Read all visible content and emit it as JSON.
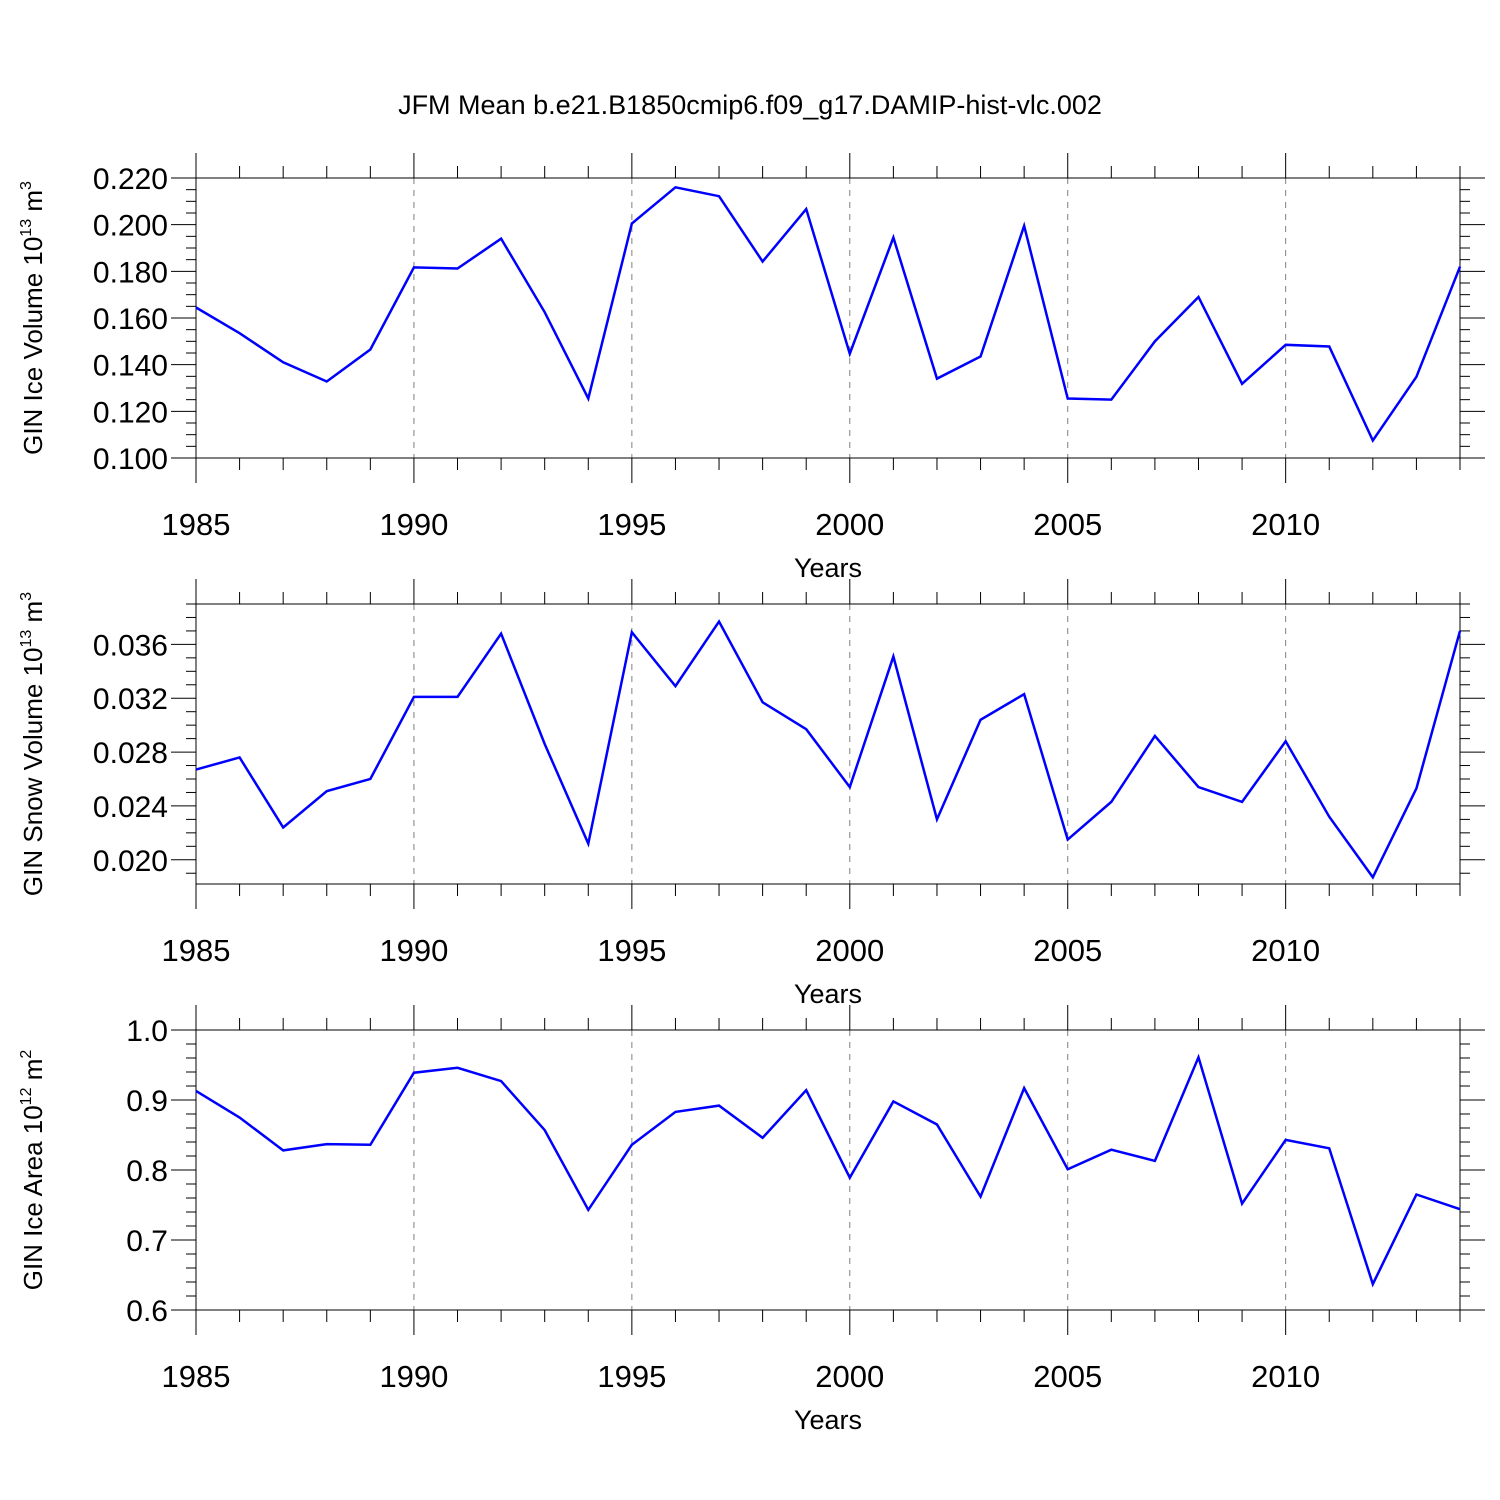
{
  "title": "JFM Mean b.e21.B1850cmip6.f09_g17.DAMIP-hist-vlc.002",
  "colors": {
    "series": "#0000ff",
    "axis": "#000000",
    "grid": "#808080",
    "background": "#ffffff"
  },
  "chart_data": [
    {
      "type": "line",
      "ylabel": "GIN Ice Volume 10",
      "ylabel_exp": "13",
      "ylabel_unit": " m",
      "ylabel_unit_exp": "3",
      "xlabel": "Years",
      "xlim": [
        1985,
        2014
      ],
      "ylim": [
        0.1,
        0.22
      ],
      "xticks": [
        1985,
        1990,
        1995,
        2000,
        2005,
        2010
      ],
      "xtick_labels": [
        "1985",
        "1990",
        "1995",
        "2000",
        "2005",
        "2010"
      ],
      "yticks": [
        0.1,
        0.12,
        0.14,
        0.16,
        0.18,
        0.2,
        0.22
      ],
      "ytick_labels": [
        "0.100",
        "0.120",
        "0.140",
        "0.160",
        "0.180",
        "0.200",
        "0.220"
      ],
      "y_minor_step": 0.005,
      "x": [
        1985,
        1986,
        1987,
        1988,
        1989,
        1990,
        1991,
        1992,
        1993,
        1994,
        1995,
        1996,
        1997,
        1998,
        1999,
        2000,
        2001,
        2002,
        2003,
        2004,
        2005,
        2006,
        2007,
        2008,
        2009,
        2010,
        2011,
        2012,
        2013,
        2014
      ],
      "values": [
        0.1645,
        0.1535,
        0.141,
        0.1328,
        0.1465,
        0.1817,
        0.1812,
        0.194,
        0.1625,
        0.1255,
        0.2005,
        0.216,
        0.2122,
        0.1842,
        0.2067,
        0.1447,
        0.1945,
        0.134,
        0.1435,
        0.1995,
        0.1255,
        0.125,
        0.15,
        0.169,
        0.1318,
        0.1485,
        0.1478,
        0.1075,
        0.1348,
        0.182
      ]
    },
    {
      "type": "line",
      "ylabel": "GIN Snow Volume 10",
      "ylabel_exp": "13",
      "ylabel_unit": " m",
      "ylabel_unit_exp": "3",
      "xlabel": "Years",
      "xlim": [
        1985,
        2014
      ],
      "ylim": [
        0.0182,
        0.039
      ],
      "xticks": [
        1985,
        1990,
        1995,
        2000,
        2005,
        2010
      ],
      "xtick_labels": [
        "1985",
        "1990",
        "1995",
        "2000",
        "2005",
        "2010"
      ],
      "yticks": [
        0.02,
        0.024,
        0.028,
        0.032,
        0.036
      ],
      "ytick_labels": [
        "0.020",
        "0.024",
        "0.028",
        "0.032",
        "0.036"
      ],
      "y_minor_step": 0.001,
      "x": [
        1985,
        1986,
        1987,
        1988,
        1989,
        1990,
        1991,
        1992,
        1993,
        1994,
        1995,
        1996,
        1997,
        1998,
        1999,
        2000,
        2001,
        2002,
        2003,
        2004,
        2005,
        2006,
        2007,
        2008,
        2009,
        2010,
        2011,
        2012,
        2013,
        2014
      ],
      "values": [
        0.0267,
        0.0276,
        0.0224,
        0.0251,
        0.026,
        0.0321,
        0.0321,
        0.0368,
        0.0286,
        0.0212,
        0.0369,
        0.0329,
        0.0377,
        0.0317,
        0.0297,
        0.0254,
        0.0351,
        0.023,
        0.0304,
        0.0323,
        0.0215,
        0.0243,
        0.0292,
        0.0254,
        0.0243,
        0.0288,
        0.0232,
        0.0187,
        0.0253,
        0.037
      ]
    },
    {
      "type": "line",
      "ylabel": "GIN Ice Area 10",
      "ylabel_exp": "12",
      "ylabel_unit": " m",
      "ylabel_unit_exp": "2",
      "xlabel": "Years",
      "xlim": [
        1985,
        2014
      ],
      "ylim": [
        0.6,
        1.0
      ],
      "xticks": [
        1985,
        1990,
        1995,
        2000,
        2005,
        2010
      ],
      "xtick_labels": [
        "1985",
        "1990",
        "1995",
        "2000",
        "2005",
        "2010"
      ],
      "yticks": [
        0.6,
        0.7,
        0.8,
        0.9,
        1.0
      ],
      "ytick_labels": [
        "0.6",
        "0.7",
        "0.8",
        "0.9",
        "1.0"
      ],
      "y_minor_step": 0.02,
      "x": [
        1985,
        1986,
        1987,
        1988,
        1989,
        1990,
        1991,
        1992,
        1993,
        1994,
        1995,
        1996,
        1997,
        1998,
        1999,
        2000,
        2001,
        2002,
        2003,
        2004,
        2005,
        2006,
        2007,
        2008,
        2009,
        2010,
        2011,
        2012,
        2013,
        2014
      ],
      "values": [
        0.913,
        0.875,
        0.828,
        0.837,
        0.836,
        0.939,
        0.946,
        0.927,
        0.857,
        0.743,
        0.836,
        0.883,
        0.892,
        0.846,
        0.914,
        0.789,
        0.898,
        0.865,
        0.762,
        0.917,
        0.801,
        0.829,
        0.813,
        0.961,
        0.752,
        0.843,
        0.831,
        0.637,
        0.765,
        0.744
      ]
    }
  ]
}
